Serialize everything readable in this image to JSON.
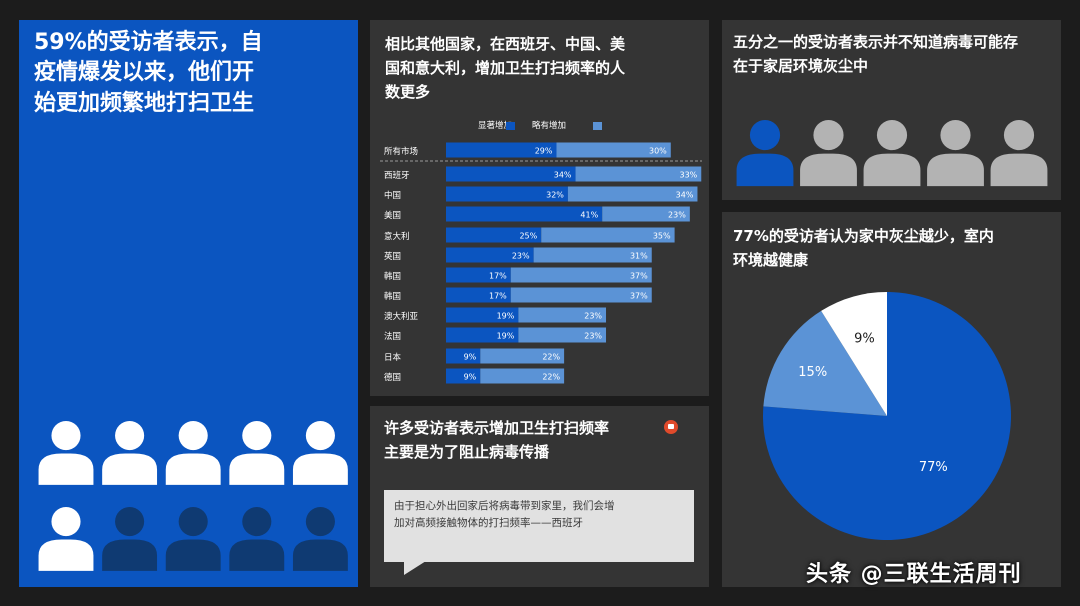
{
  "panel1": {
    "title_lines": [
      "59%的受访者表示，自",
      "疫情爆发以来，他们开",
      "始更加频繁地打扫卫生"
    ],
    "people_total": 10,
    "people_highlighted": 6,
    "people_icon": "person-icon"
  },
  "panel2": {
    "title_lines": [
      "相比其他国家，在西班牙、中国、美",
      "国和意大利，增加卫生打扫频率的人",
      "数更多"
    ]
  },
  "panel3": {
    "title_lines": [
      "五分之一的受访者表示并不知道病毒可能存",
      "在于家居环境灰尘中"
    ],
    "people_total": 5,
    "people_highlighted": 1,
    "people_icon": "person-icon"
  },
  "panel4": {
    "title_lines": [
      "77%的受访者认为家中灰尘越少，室内",
      "环境越健康"
    ]
  },
  "panel5": {
    "title_lines": [
      "许多受访者表示增加卫生打扫频率",
      "主要是为了阻止病毒传播"
    ],
    "quote_lines": [
      "由于担心外出回家后将病毒带到家里，我们会增",
      "加对高频接触物体的打扫频率——西班牙"
    ],
    "icon": "speech-bubble-icon"
  },
  "watermark": "头条 @三联生活周刊",
  "colors": {
    "blue": "#0b55c0",
    "light_blue": "#5b93d6",
    "dark_blue": "#0f3a72",
    "gray_person": "#b3b3b3",
    "white": "#ffffff",
    "panel": "#343434"
  },
  "chart_data": [
    {
      "type": "bar",
      "stacked": true,
      "orientation": "horizontal",
      "categories": [
        "所有市场",
        "西班牙",
        "中国",
        "美国",
        "意大利",
        "英国",
        "韩国",
        "韩国",
        "澳大利亚",
        "法国",
        "日本",
        "德国"
      ],
      "series": [
        {
          "name": "显著增加",
          "color": "#0b55c0",
          "values": [
            29,
            34,
            32,
            41,
            25,
            23,
            17,
            17,
            19,
            19,
            9,
            9
          ]
        },
        {
          "name": "略有增加",
          "color": "#5b93d6",
          "values": [
            30,
            33,
            34,
            23,
            35,
            31,
            37,
            37,
            23,
            23,
            22,
            22
          ]
        }
      ],
      "value_suffix": "%",
      "legend_position": "top"
    },
    {
      "type": "pie",
      "labels": [
        "77%",
        "15%",
        "9%"
      ],
      "values": [
        77,
        15,
        9
      ],
      "colors": [
        "#0b55c0",
        "#5b93d6",
        "#ffffff"
      ],
      "start": "top",
      "direction": "clockwise"
    }
  ]
}
